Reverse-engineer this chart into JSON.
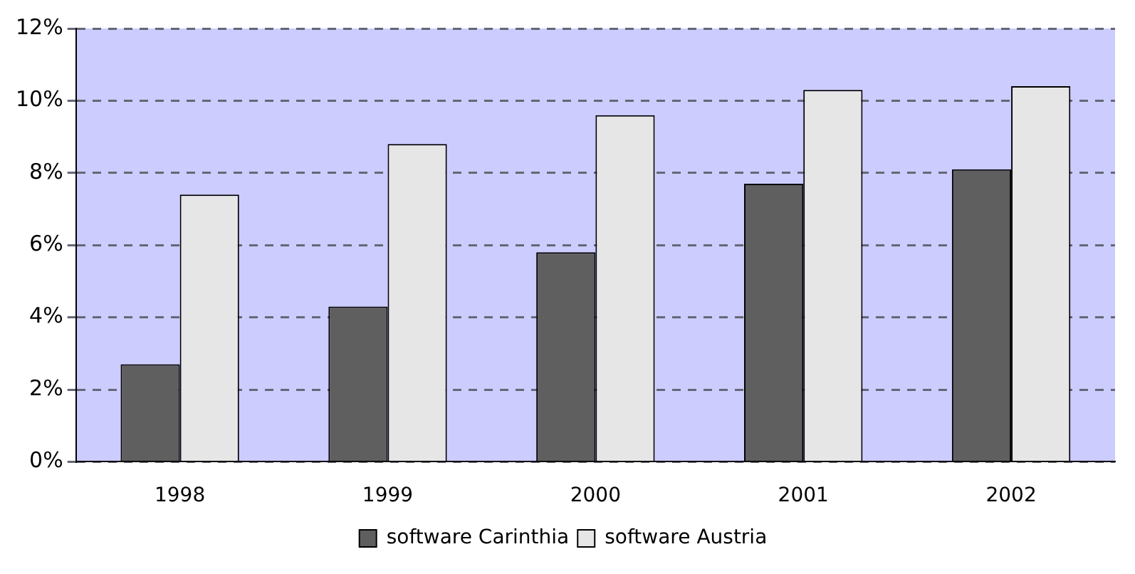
{
  "chart_data": {
    "type": "bar",
    "categories": [
      "1998",
      "1999",
      "2000",
      "2001",
      "2002"
    ],
    "series": [
      {
        "name": "software Carinthia",
        "color": "#5f5f5f",
        "values": [
          2.7,
          4.3,
          5.8,
          7.7,
          8.1
        ]
      },
      {
        "name": "software Austria",
        "color": "#e6e6e6",
        "values": [
          7.4,
          8.8,
          9.6,
          10.3,
          10.4
        ]
      }
    ],
    "ylim": [
      0,
      12
    ],
    "yticks": [
      {
        "value": 0,
        "label": "0%"
      },
      {
        "value": 2,
        "label": "2%"
      },
      {
        "value": 4,
        "label": "4%"
      },
      {
        "value": 6,
        "label": "6%"
      },
      {
        "value": 8,
        "label": "8%"
      },
      {
        "value": 10,
        "label": "10%"
      },
      {
        "value": 12,
        "label": "12%"
      }
    ],
    "grid": "y",
    "legend": "bottom"
  }
}
